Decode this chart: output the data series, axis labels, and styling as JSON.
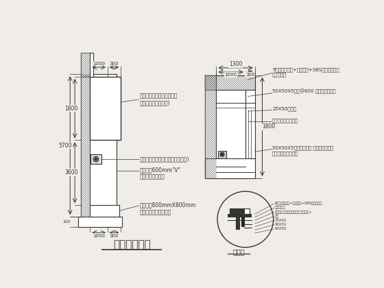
{
  "bg_color": "#f0ede8",
  "line_color": "#333333",
  "title": "门头立面详图",
  "detail_title": "大样图",
  "annotations_left": [
    {
      "text": "面层基层铝锰板饰面板（含\n钢件完防水工艺基层)",
      "fontsize": 5.5
    },
    {
      "text": "自喷银行小灯箱（建参照标准要求)",
      "fontsize": 5.5
    },
    {
      "text": "轻重干挂600mm\"V\"\n字缝米白色铝面砖",
      "fontsize": 5.5
    },
    {
      "text": "地台铺贴800mmX800mm\n中国黑石材加工抛擦道",
      "fontsize": 5.5
    }
  ],
  "annotations_right": [
    {
      "text": "9厚装饰板表层+镀锌机夹+SBS卷材防水水层\n详见大样图",
      "fontsize": 5.0
    },
    {
      "text": "50X50X5角钢@600 外刷防锈漆三遍",
      "fontsize": 5.0
    },
    {
      "text": "25X50铝方管",
      "fontsize": 5.0
    },
    {
      "text": "白色型铝板密拼干挂",
      "fontsize": 5.0
    },
    {
      "text": "50X50X5角钢料比夯垫 外刷防锈漆三遍\n电动防火玻晶卷管门",
      "fontsize": 5.0
    }
  ],
  "detail_annotations": [
    "9厚装饰板表层+镀锌机夹+SBS卷材防水层",
    "泡沫填密实",
    "白色型铝板密拼干挂，高度同主体参+",
    "暗村",
    "25X50",
    "50X50",
    "50X50"
  ]
}
